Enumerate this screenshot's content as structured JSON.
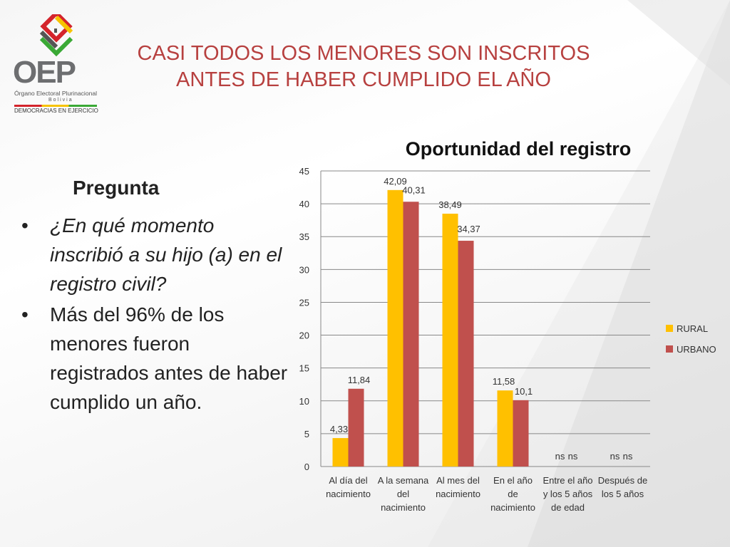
{
  "header": {
    "title_line1": "CASI TODOS LOS MENORES SON INSCRITOS",
    "title_line2": "ANTES DE HABER CUMPLIDO EL AÑO"
  },
  "logo": {
    "acronym": "OEP",
    "name": "Órgano Electoral Plurinacional",
    "country": "Bolivia",
    "tagline": "DEMOCRACIAS EN EJERCICIO"
  },
  "left_panel": {
    "heading": "Pregunta",
    "bullet_symbol": "•",
    "bullets": [
      "¿En qué momento inscribió a su hijo (a) en el registro civil?",
      "Más del 96% de los menores fueron registrados antes de haber cumplido un año."
    ]
  },
  "colors": {
    "title": "#b7403f",
    "rural": "#ffc000",
    "urbano": "#c0504d"
  },
  "chart_data": {
    "type": "bar",
    "title": "Oportunidad del registro",
    "categories": [
      [
        "Al día del",
        "nacimiento"
      ],
      [
        "A la semana",
        "del",
        "nacimiento"
      ],
      [
        "Al mes del",
        "nacimiento"
      ],
      [
        "En el año",
        "de",
        "nacimiento"
      ],
      [
        "Entre el año",
        "y los 5 años",
        "de edad"
      ],
      [
        "Después de",
        "los 5 años"
      ]
    ],
    "series": [
      {
        "name": "RURAL",
        "color": "#ffc000",
        "values": [
          4.33,
          42.09,
          38.49,
          11.58,
          null,
          null
        ],
        "labels": [
          "4,33",
          "42,09",
          "38,49",
          "11,58",
          "ns",
          "ns"
        ]
      },
      {
        "name": "URBANO",
        "color": "#c0504d",
        "values": [
          11.84,
          40.31,
          34.37,
          10.1,
          null,
          null
        ],
        "labels": [
          "11,84",
          "40,31",
          "34,37",
          "10,1",
          "ns",
          "ns"
        ]
      }
    ],
    "ylim": [
      0,
      45
    ],
    "yticks": [
      0,
      5,
      10,
      15,
      20,
      25,
      30,
      35,
      40,
      45
    ],
    "grid": true,
    "legend": "right"
  }
}
